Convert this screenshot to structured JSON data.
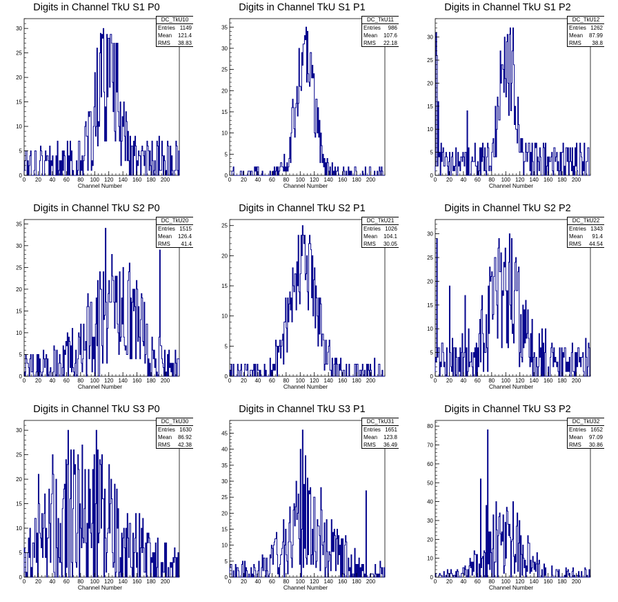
{
  "x_axis_label": "Channel Number",
  "stats_labels": {
    "entries": "Entries",
    "mean": "Mean",
    "rms": "RMS"
  },
  "colors": {
    "histogram": "#00008B",
    "axis": "#000000",
    "background": "#ffffff"
  },
  "chart_data": [
    {
      "type": "histogram",
      "title": "Digits in Channel TkU S1 P0",
      "stats_name": "DC_TkU10",
      "entries": "1149",
      "mean": "121.4",
      "rms": "38.83",
      "xlabel": "Channel Number",
      "xlim": [
        0,
        220
      ],
      "ylim": [
        0,
        32
      ],
      "yticks": [
        0,
        5,
        10,
        15,
        20,
        25,
        30
      ],
      "xticks": [
        0,
        20,
        40,
        60,
        80,
        100,
        120,
        140,
        160,
        180,
        200
      ],
      "dist": {
        "kind": "gauss",
        "mu": 118,
        "sigma": 14,
        "amp": 20,
        "base": 3,
        "noise": 6,
        "spikes": [
          [
            112,
            30
          ],
          [
            108,
            29
          ],
          [
            120,
            28
          ],
          [
            103,
            26
          ],
          [
            132,
            27
          ]
        ]
      }
    },
    {
      "type": "histogram",
      "title": "Digits in Channel TkU S1 P1",
      "stats_name": "DC_TkU11",
      "entries": "986",
      "mean": "107.6",
      "rms": "22.18",
      "xlabel": "Channel Number",
      "xlim": [
        0,
        220
      ],
      "ylim": [
        0,
        37
      ],
      "yticks": [
        0,
        5,
        10,
        15,
        20,
        25,
        30,
        35
      ],
      "xticks": [
        0,
        20,
        40,
        60,
        80,
        100,
        120,
        140,
        160,
        180,
        200
      ],
      "dist": {
        "kind": "gauss",
        "mu": 107,
        "sigma": 13,
        "amp": 28,
        "base": 0.4,
        "noise": 4,
        "spikes": [
          [
            108,
            35
          ],
          [
            110,
            34
          ],
          [
            104,
            31
          ],
          [
            212,
            2
          ]
        ]
      }
    },
    {
      "type": "histogram",
      "title": "Digits in Channel TkU S1 P2",
      "stats_name": "DC_TkU12",
      "entries": "1262",
      "mean": "87.99",
      "rms": "38.8",
      "xlabel": "Channel Number",
      "xlim": [
        0,
        220
      ],
      "ylim": [
        0,
        34
      ],
      "yticks": [
        0,
        5,
        10,
        15,
        20,
        25,
        30
      ],
      "xticks": [
        0,
        20,
        40,
        60,
        80,
        100,
        120,
        140,
        160,
        180,
        200
      ],
      "dist": {
        "kind": "gauss",
        "mu": 103,
        "sigma": 10,
        "amp": 26,
        "base": 3,
        "noise": 5,
        "spikes": [
          [
            1,
            31
          ],
          [
            2,
            26
          ],
          [
            4,
            16
          ],
          [
            106,
            32
          ],
          [
            110,
            32
          ],
          [
            98,
            30
          ],
          [
            45,
            14
          ]
        ]
      }
    },
    {
      "type": "histogram",
      "title": "Digits in Channel TkU S2 P0",
      "stats_name": "DC_TkU20",
      "entries": "1515",
      "mean": "126.4",
      "rms": "41.4",
      "xlabel": "Channel Number",
      "xlim": [
        0,
        220
      ],
      "ylim": [
        0,
        36
      ],
      "yticks": [
        0,
        5,
        10,
        15,
        20,
        25,
        30,
        35
      ],
      "xticks": [
        0,
        20,
        40,
        60,
        80,
        100,
        120,
        140,
        160,
        180,
        200
      ],
      "dist": {
        "kind": "wide",
        "mu": 130,
        "sigma": 35,
        "amp": 15,
        "base": 1.5,
        "noise": 7,
        "spikes": [
          [
            115,
            34
          ],
          [
            125,
            23
          ],
          [
            156,
            20
          ],
          [
            192,
            29
          ],
          [
            160,
            20
          ]
        ]
      }
    },
    {
      "type": "histogram",
      "title": "Digits in Channel TkU S2 P1",
      "stats_name": "DC_TkU21",
      "entries": "1026",
      "mean": "104.1",
      "rms": "30.05",
      "xlabel": "Channel Number",
      "xlim": [
        0,
        220
      ],
      "ylim": [
        0,
        26
      ],
      "yticks": [
        0,
        5,
        10,
        15,
        20,
        25
      ],
      "xticks": [
        0,
        20,
        40,
        60,
        80,
        100,
        120,
        140,
        160,
        180,
        200
      ],
      "dist": {
        "kind": "gauss",
        "mu": 104,
        "sigma": 18,
        "amp": 19,
        "base": 0.8,
        "noise": 4,
        "spikes": [
          [
            103,
            25
          ],
          [
            112,
            22
          ],
          [
            115,
            21
          ]
        ]
      }
    },
    {
      "type": "histogram",
      "title": "Digits in Channel TkU S2 P2",
      "stats_name": "DC_TkU22",
      "entries": "1343",
      "mean": "91.4",
      "rms": "44.54",
      "xlabel": "Channel Number",
      "xlim": [
        0,
        220
      ],
      "ylim": [
        0,
        33
      ],
      "yticks": [
        0,
        5,
        10,
        15,
        20,
        25,
        30
      ],
      "xticks": [
        0,
        20,
        40,
        60,
        80,
        100,
        120,
        140,
        160,
        180,
        200
      ],
      "dist": {
        "kind": "wide",
        "mu": 100,
        "sigma": 22,
        "amp": 16,
        "base": 3,
        "noise": 7,
        "spikes": [
          [
            105,
            30
          ],
          [
            2,
            29
          ],
          [
            20,
            19
          ],
          [
            114,
            25
          ],
          [
            42,
            17
          ]
        ]
      }
    },
    {
      "type": "histogram",
      "title": "Digits in Channel TkU S3 P0",
      "stats_name": "DC_TkU30",
      "entries": "1630",
      "mean": "86.92",
      "rms": "42.38",
      "xlabel": "Channel Number",
      "xlim": [
        0,
        220
      ],
      "ylim": [
        0,
        32
      ],
      "yticks": [
        0,
        5,
        10,
        15,
        20,
        25,
        30
      ],
      "xticks": [
        0,
        20,
        40,
        60,
        80,
        100,
        120,
        140,
        160,
        180,
        200
      ],
      "dist": {
        "kind": "wide",
        "mu": 85,
        "sigma": 50,
        "amp": 12,
        "base": 1,
        "noise": 9,
        "spikes": [
          [
            62,
            30
          ],
          [
            102,
            30
          ],
          [
            40,
            25
          ],
          [
            70,
            26
          ],
          [
            20,
            21
          ],
          [
            110,
            25
          ],
          [
            120,
            23
          ]
        ]
      }
    },
    {
      "type": "histogram",
      "title": "Digits in Channel TkU S3 P1",
      "stats_name": "DC_TkU31",
      "entries": "1651",
      "mean": "123.8",
      "rms": "36.49",
      "xlabel": "Channel Number",
      "xlim": [
        0,
        220
      ],
      "ylim": [
        0,
        49
      ],
      "yticks": [
        0,
        5,
        10,
        15,
        20,
        25,
        30,
        35,
        40,
        45
      ],
      "xticks": [
        0,
        20,
        40,
        60,
        80,
        100,
        120,
        140,
        160,
        180,
        200
      ],
      "dist": {
        "kind": "wide",
        "mu": 115,
        "sigma": 30,
        "amp": 16,
        "base": 1,
        "noise": 8,
        "spikes": [
          [
            103,
            46
          ],
          [
            100,
            40
          ],
          [
            107,
            38
          ],
          [
            94,
            30
          ],
          [
            112,
            27
          ],
          [
            193,
            27
          ]
        ]
      }
    },
    {
      "type": "histogram",
      "title": "Digits in Channel TkU S3 P2",
      "stats_name": "DC_TkU32",
      "entries": "1652",
      "mean": "97.09",
      "rms": "30.86",
      "xlabel": "Channel Number",
      "xlim": [
        0,
        220
      ],
      "ylim": [
        0,
        83
      ],
      "yticks": [
        0,
        10,
        20,
        30,
        40,
        50,
        60,
        70,
        80
      ],
      "xticks": [
        0,
        20,
        40,
        60,
        80,
        100,
        120,
        140,
        160,
        180,
        200
      ],
      "dist": {
        "kind": "wide",
        "mu": 100,
        "sigma": 25,
        "amp": 20,
        "base": 0.5,
        "noise": 10,
        "spikes": [
          [
            74,
            78
          ],
          [
            64,
            52
          ],
          [
            72,
            38
          ],
          [
            86,
            40
          ],
          [
            110,
            40
          ],
          [
            102,
            35
          ]
        ]
      }
    }
  ]
}
